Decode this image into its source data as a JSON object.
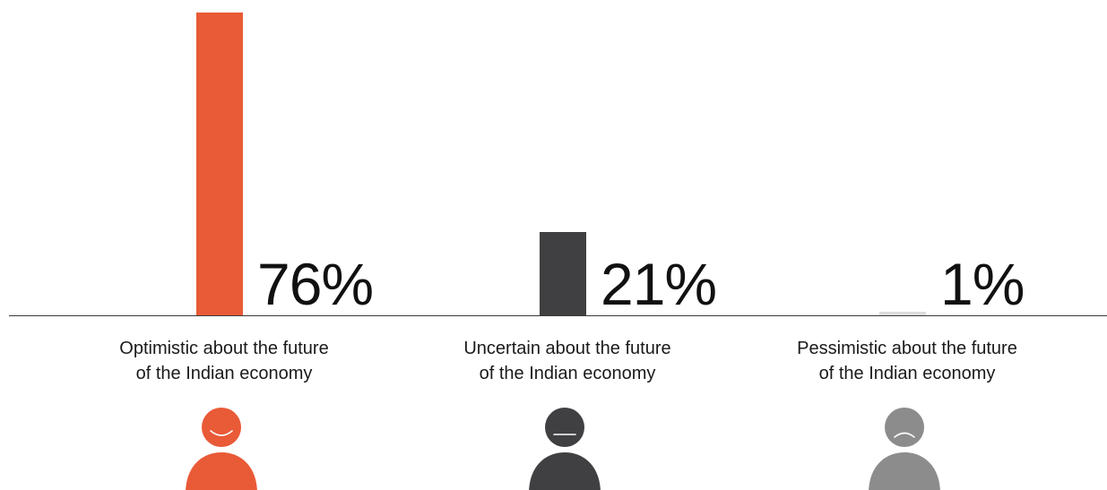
{
  "chart_data": {
    "type": "bar",
    "categories": [
      [
        "Optimistic about the future",
        "of the Indian economy"
      ],
      [
        "Uncertain about the future",
        "of the Indian economy"
      ],
      [
        "Pessimistic about the future",
        "of the Indian economy"
      ]
    ],
    "values": [
      76,
      21,
      1
    ],
    "value_labels": [
      "76%",
      "21%",
      "1%"
    ],
    "ylim": [
      0,
      100
    ],
    "grid": false,
    "colors": [
      "#e95a37",
      "#404042",
      "#dcdcdc"
    ],
    "icon_colors": [
      "#e95a37",
      "#404042",
      "#8c8c8c"
    ],
    "icons": [
      "happy-person-icon",
      "neutral-person-icon",
      "sad-person-icon"
    ]
  }
}
